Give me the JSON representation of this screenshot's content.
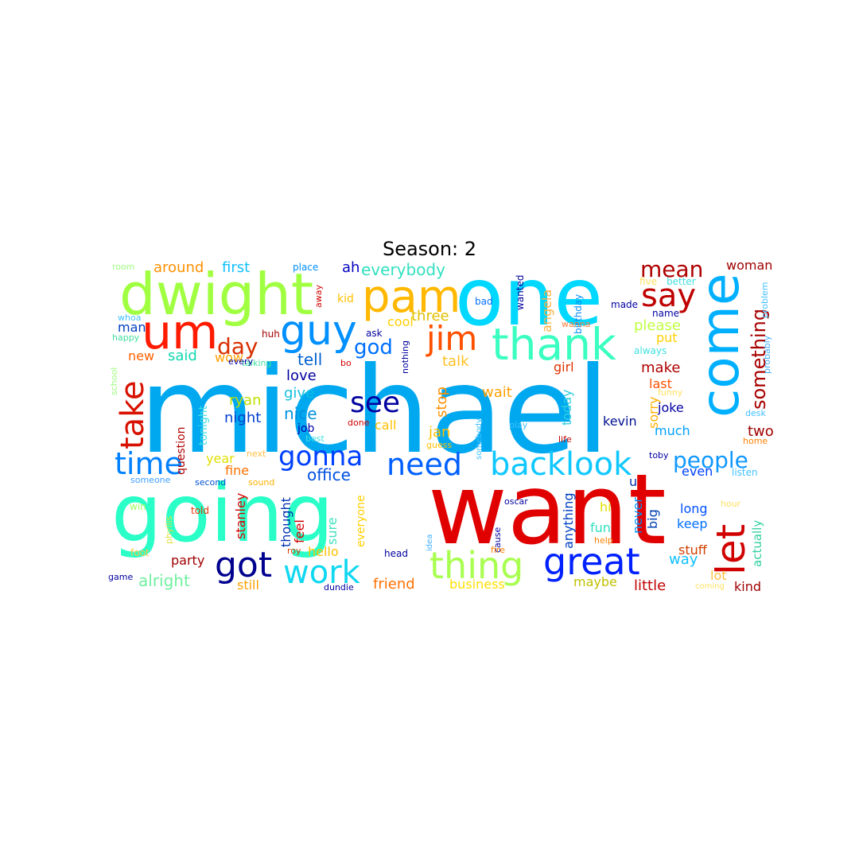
{
  "title": "Season: 2",
  "words": [
    {
      "text": "michael",
      "color": "#00a8f0"
    },
    {
      "text": "want",
      "color": "#e00000"
    },
    {
      "text": "going",
      "color": "#2affc8"
    },
    {
      "text": "one",
      "color": "#00d8ff"
    },
    {
      "text": "dwight",
      "color": "#a0ff40"
    },
    {
      "text": "come",
      "color": "#00b0ff"
    },
    {
      "text": "um",
      "color": "#ff1a00"
    },
    {
      "text": "pam",
      "color": "#ffb800"
    },
    {
      "text": "thank",
      "color": "#3affc0"
    },
    {
      "text": "guy",
      "color": "#0090ff"
    },
    {
      "text": "let",
      "color": "#d00000"
    },
    {
      "text": "great",
      "color": "#0020ff"
    },
    {
      "text": "thing",
      "color": "#a8ff50"
    },
    {
      "text": "backlook",
      "color": "#10c8ff"
    },
    {
      "text": "need",
      "color": "#0060ff"
    },
    {
      "text": "time",
      "color": "#0080ff"
    },
    {
      "text": "got",
      "color": "#00008f"
    },
    {
      "text": "work",
      "color": "#10d8f0"
    },
    {
      "text": "see",
      "color": "#0000a0"
    },
    {
      "text": "jim",
      "color": "#ff5000"
    },
    {
      "text": "gonna",
      "color": "#0040ff"
    },
    {
      "text": "say",
      "color": "#c00000"
    },
    {
      "text": "mean",
      "color": "#b00000"
    },
    {
      "text": "take",
      "color": "#d81000"
    },
    {
      "text": "people",
      "color": "#1098ff"
    },
    {
      "text": "something",
      "color": "#a80000"
    },
    {
      "text": "day",
      "color": "#d83000"
    },
    {
      "text": "god",
      "color": "#0070ff"
    },
    {
      "text": "office",
      "color": "#0050e0"
    },
    {
      "text": "everybody",
      "color": "#30e0c0"
    },
    {
      "text": "first",
      "color": "#10c0ff"
    },
    {
      "text": "around",
      "color": "#ff9000"
    },
    {
      "text": "ah",
      "color": "#0000c0"
    },
    {
      "text": "please",
      "color": "#c0ff40"
    },
    {
      "text": "make",
      "color": "#b00000"
    },
    {
      "text": "two",
      "color": "#a00000"
    },
    {
      "text": "woman",
      "color": "#a00000"
    },
    {
      "text": "talk",
      "color": "#ffc020"
    },
    {
      "text": "tell",
      "color": "#0060d0"
    },
    {
      "text": "love",
      "color": "#0000a0"
    },
    {
      "text": "give",
      "color": "#10c0e0"
    },
    {
      "text": "nice",
      "color": "#0090e0"
    },
    {
      "text": "ryan",
      "color": "#c0e000"
    },
    {
      "text": "night",
      "color": "#0040d0"
    },
    {
      "text": "said",
      "color": "#10d8b0"
    },
    {
      "text": "new",
      "color": "#ff6000"
    },
    {
      "text": "wow",
      "color": "#ffa000"
    },
    {
      "text": "man",
      "color": "#0040c0"
    },
    {
      "text": "cool",
      "color": "#ffd000"
    },
    {
      "text": "three",
      "color": "#e0c000"
    },
    {
      "text": "stop",
      "color": "#ff9000"
    },
    {
      "text": "jan",
      "color": "#ffc000"
    },
    {
      "text": "call",
      "color": "#ffc000"
    },
    {
      "text": "wait",
      "color": "#ffa000"
    },
    {
      "text": "today",
      "color": "#30d0e0"
    },
    {
      "text": "sorry",
      "color": "#ffb000"
    },
    {
      "text": "kevin",
      "color": "#00108f"
    },
    {
      "text": "joke",
      "color": "#0000a0"
    },
    {
      "text": "much",
      "color": "#00a0ff"
    },
    {
      "text": "last",
      "color": "#ff5000"
    },
    {
      "text": "put",
      "color": "#ffd000"
    },
    {
      "text": "girl",
      "color": "#e03000"
    },
    {
      "text": "angela",
      "color": "#ffb040"
    },
    {
      "text": "year",
      "color": "#e0e000"
    },
    {
      "text": "fine",
      "color": "#ff7000"
    },
    {
      "text": "stanley",
      "color": "#d80000"
    },
    {
      "text": "thought",
      "color": "#0030b0"
    },
    {
      "text": "feel",
      "color": "#d00000"
    },
    {
      "text": "sure",
      "color": "#40e0c0"
    },
    {
      "text": "everyone",
      "color": "#ffd000"
    },
    {
      "text": "hello",
      "color": "#ffc000"
    },
    {
      "text": "party",
      "color": "#a00000"
    },
    {
      "text": "alright",
      "color": "#70f0a0"
    },
    {
      "text": "still",
      "color": "#ffa000"
    },
    {
      "text": "friend",
      "color": "#ff7000"
    },
    {
      "text": "business",
      "color": "#ffe000"
    },
    {
      "text": "maybe",
      "color": "#c0c000"
    },
    {
      "text": "little",
      "color": "#c00000"
    },
    {
      "text": "kind",
      "color": "#a00000"
    },
    {
      "text": "lot",
      "color": "#ffc040"
    },
    {
      "text": "stuff",
      "color": "#d04000"
    },
    {
      "text": "way",
      "color": "#10c0ff"
    },
    {
      "text": "actually",
      "color": "#30d0a0"
    },
    {
      "text": "keep",
      "color": "#0070ff"
    },
    {
      "text": "long",
      "color": "#0050ff"
    },
    {
      "text": "even",
      "color": "#0040ff"
    },
    {
      "text": "big",
      "color": "#0040b0"
    },
    {
      "text": "never",
      "color": "#0090ff"
    },
    {
      "text": "fun",
      "color": "#30e0c0"
    },
    {
      "text": "hi",
      "color": "#e0e000"
    },
    {
      "text": "anything",
      "color": "#0040c0"
    },
    {
      "text": "u",
      "color": "#0030b0"
    },
    {
      "text": "question",
      "color": "#b00000"
    },
    {
      "text": "tonight",
      "color": "#40e0e0"
    },
    {
      "text": "job",
      "color": "#0000b0"
    },
    {
      "text": "kid",
      "color": "#ffc000"
    },
    {
      "text": "wanted",
      "color": "#0000a0"
    },
    {
      "text": "birthday",
      "color": "#0090ff"
    },
    {
      "text": "made",
      "color": "#0000a0"
    },
    {
      "text": "name",
      "color": "#0000a0"
    },
    {
      "text": "five",
      "color": "#ffe060"
    },
    {
      "text": "better",
      "color": "#40e0e0"
    },
    {
      "text": "problem",
      "color": "#40c0ff"
    },
    {
      "text": "probably",
      "color": "#40b0ff"
    },
    {
      "text": "always",
      "color": "#40e0e0"
    },
    {
      "text": "funny",
      "color": "#ffe060"
    },
    {
      "text": "desk",
      "color": "#40c0ff"
    },
    {
      "text": "home",
      "color": "#ff8000"
    },
    {
      "text": "listen",
      "color": "#40c0ff"
    },
    {
      "text": "hour",
      "color": "#ffe060"
    },
    {
      "text": "coming",
      "color": "#ffe060"
    },
    {
      "text": "toby",
      "color": "#0000a0"
    },
    {
      "text": "oscar",
      "color": "#0000a0"
    },
    {
      "text": "life",
      "color": "#c00000"
    },
    {
      "text": "cause",
      "color": "#0000a0"
    },
    {
      "text": "help",
      "color": "#ff8000"
    },
    {
      "text": "fire",
      "color": "#ff8000"
    },
    {
      "text": "play",
      "color": "#40c0ff"
    },
    {
      "text": "somebody",
      "color": "#40c0ff"
    },
    {
      "text": "guess",
      "color": "#ffc000"
    },
    {
      "text": "idea",
      "color": "#40b0ff"
    },
    {
      "text": "head",
      "color": "#0000a0"
    },
    {
      "text": "done",
      "color": "#d00000"
    },
    {
      "text": "nothing",
      "color": "#0000a0"
    },
    {
      "text": "ask",
      "color": "#0000a0"
    },
    {
      "text": "huh",
      "color": "#a00000"
    },
    {
      "text": "talking",
      "color": "#40e0a0"
    },
    {
      "text": "bo",
      "color": "#d00000"
    },
    {
      "text": "every",
      "color": "#0000a0"
    },
    {
      "text": "next",
      "color": "#ffc040"
    },
    {
      "text": "best",
      "color": "#40e0e0"
    },
    {
      "text": "second",
      "color": "#0050d0"
    },
    {
      "text": "sound",
      "color": "#ffb000"
    },
    {
      "text": "someone",
      "color": "#40a0ff"
    },
    {
      "text": "win",
      "color": "#a0ff60"
    },
    {
      "text": "told",
      "color": "#e03000"
    },
    {
      "text": "phyllis",
      "color": "#e0e040"
    },
    {
      "text": "foot",
      "color": "#ffc040"
    },
    {
      "text": "roy",
      "color": "#d04000"
    },
    {
      "text": "game",
      "color": "#0000a0"
    },
    {
      "text": "dundie",
      "color": "#0000a0"
    },
    {
      "text": "room",
      "color": "#a0ff80"
    },
    {
      "text": "place",
      "color": "#0090ff"
    },
    {
      "text": "away",
      "color": "#d00000"
    },
    {
      "text": "bad",
      "color": "#0070ff"
    },
    {
      "text": "wanna",
      "color": "#ff8040"
    },
    {
      "text": "whoa",
      "color": "#40c0ff"
    },
    {
      "text": "happy",
      "color": "#40e0a0"
    },
    {
      "text": "school",
      "color": "#a0ff80"
    }
  ]
}
